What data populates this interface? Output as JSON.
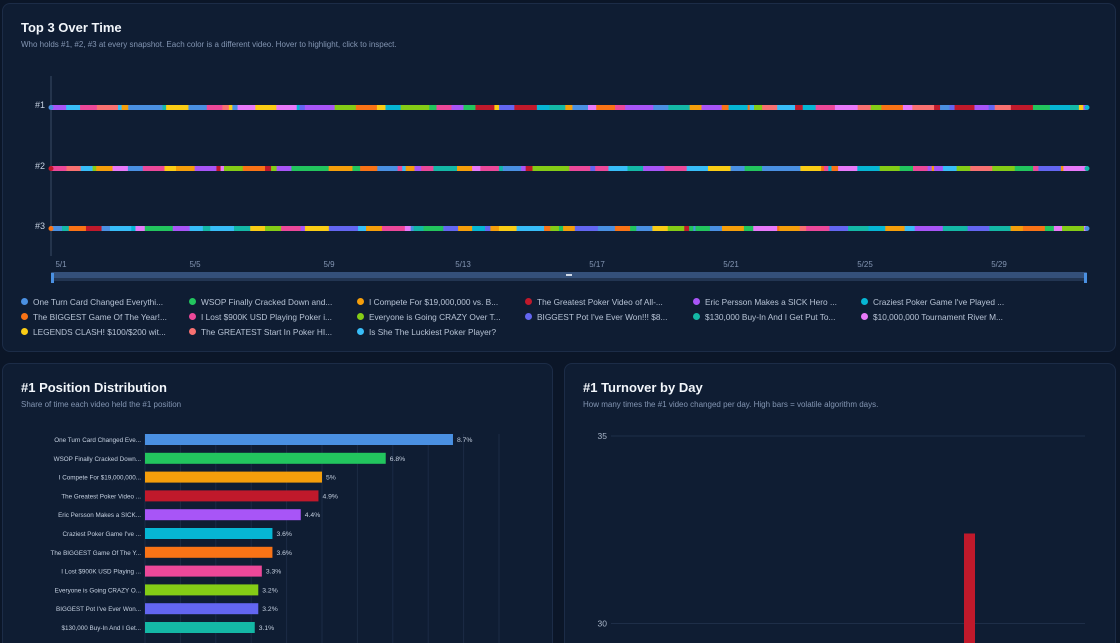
{
  "top3": {
    "title": "Top 3 Over Time",
    "subtitle": "Who holds #1, #2, #3 at every snapshot. Each color is a different video. Hover to highlight, click to inspect."
  },
  "distribution": {
    "title": "#1 Position Distribution",
    "subtitle": "Share of time each video held the #1 position"
  },
  "turnover": {
    "title": "#1 Turnover by Day",
    "subtitle": "How many times the #1 video changed per day. High bars = volatile algorithm days."
  },
  "legend": [
    {
      "label": "One Turn Card Changed Everythi...",
      "color": "#4a90e2"
    },
    {
      "label": "WSOP Finally Cracked Down and...",
      "color": "#22c55e"
    },
    {
      "label": "I Compete For $19,000,000 vs. B...",
      "color": "#f59e0b"
    },
    {
      "label": "The Greatest Poker Video of All-...",
      "color": "#c0192b"
    },
    {
      "label": "Eric Persson Makes a SICK Hero ...",
      "color": "#a855f7"
    },
    {
      "label": "Craziest Poker Game I've Played ...",
      "color": "#06b6d4"
    },
    {
      "label": "The BIGGEST Game Of The Year!...",
      "color": "#f97316"
    },
    {
      "label": "I Lost $900K USD Playing Poker i...",
      "color": "#ec4899"
    },
    {
      "label": "Everyone is Going CRAZY Over T...",
      "color": "#84cc16"
    },
    {
      "label": "BIGGEST Pot I've Ever Won!!! $8...",
      "color": "#6366f1"
    },
    {
      "label": "$130,000 Buy-In And I Get Put To...",
      "color": "#14b8a6"
    },
    {
      "label": "$10,000,000 Tournament River M...",
      "color": "#e879f9"
    },
    {
      "label": "LEGENDS CLASH! $100/$200 wit...",
      "color": "#facc15"
    },
    {
      "label": "The GREATEST Start In Poker HI...",
      "color": "#f87171"
    },
    {
      "label": "Is She The Luckiest Poker Player?",
      "color": "#38bdf8"
    }
  ],
  "chart_data": [
    {
      "type": "line",
      "title": "Top 3 Over Time",
      "y_categories": [
        "#1",
        "#2",
        "#3"
      ],
      "x_ticks": [
        "5/1",
        "5/5",
        "5/9",
        "5/13",
        "5/17",
        "5/21",
        "5/25",
        "5/29"
      ],
      "grid": false,
      "legend_position": "bottom"
    },
    {
      "type": "bar",
      "orientation": "horizontal",
      "title": "#1 Position Distribution",
      "categories": [
        "One Turn Card Changed Eve...",
        "WSOP Finally Cracked Down...",
        "I Compete For $19,000,000...",
        "The Greatest Poker Video ...",
        "Eric Persson Makes a SICK...",
        "Craziest Poker Game I've ...",
        "The BIGGEST Game Of The Y...",
        "I Lost $900K USD Playing ...",
        "Everyone is Going CRAZY O...",
        "BIGGEST Pot I've Ever Won...",
        "$130,000 Buy-In And I Get..."
      ],
      "values": [
        8.7,
        6.8,
        5,
        4.9,
        4.4,
        3.6,
        3.6,
        3.3,
        3.2,
        3.2,
        3.1
      ],
      "value_labels": [
        "8.7%",
        "6.8%",
        "5%",
        "4.9%",
        "4.4%",
        "3.6%",
        "3.6%",
        "3.3%",
        "3.2%",
        "3.2%",
        "3.1%"
      ],
      "colors": [
        "#4a90e2",
        "#22c55e",
        "#f59e0b",
        "#c0192b",
        "#a855f7",
        "#06b6d4",
        "#f97316",
        "#ec4899",
        "#84cc16",
        "#6366f1",
        "#14b8a6"
      ],
      "xlim": [
        0,
        10
      ],
      "grid": true
    },
    {
      "type": "bar",
      "title": "#1 Turnover by Day",
      "y_ticks": [
        "35",
        "30"
      ],
      "ylim": [
        25,
        35
      ],
      "visible_bars": [
        {
          "value": 32.4,
          "color": "#c0192b"
        }
      ],
      "grid": true
    }
  ]
}
